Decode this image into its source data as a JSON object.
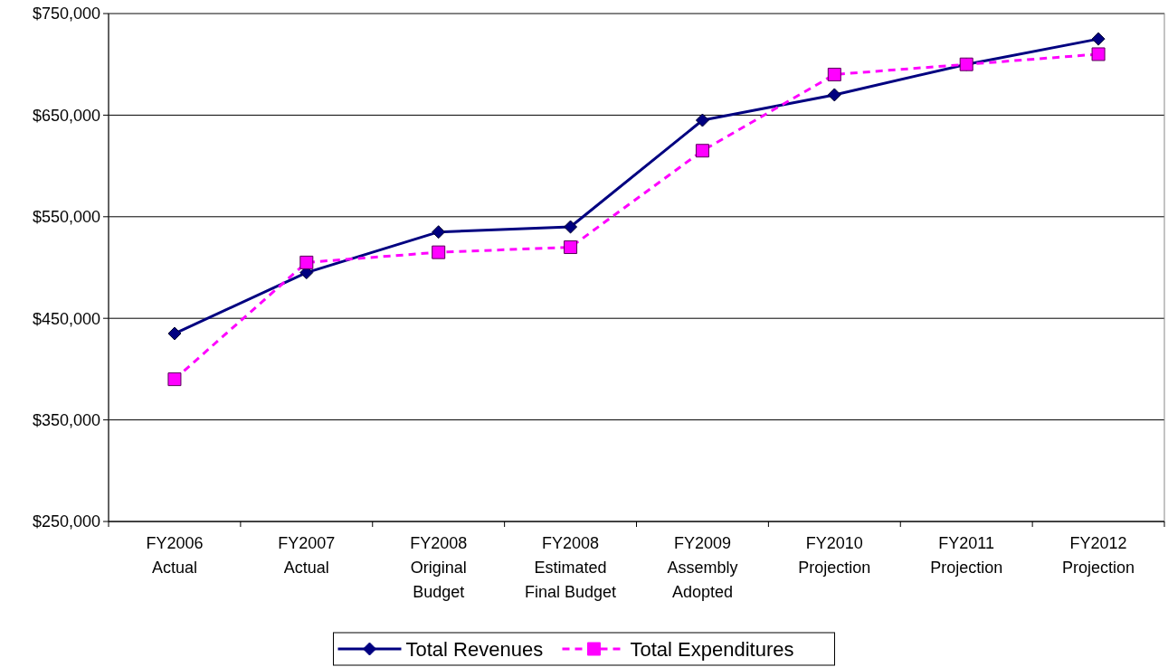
{
  "chart_data": {
    "type": "line",
    "categories": [
      "FY2006\nActual",
      "FY2007\nActual",
      "FY2008\nOriginal\nBudget",
      "FY2008\nEstimated\nFinal Budget",
      "FY2009\nAssembly\nAdopted",
      "FY2010\nProjection",
      "FY2011\nProjection",
      "FY2012\nProjection"
    ],
    "series": [
      {
        "name": "Total Revenues",
        "color": "#000080",
        "marker": "diamond",
        "line_style": "solid",
        "values": [
          435000,
          495000,
          535000,
          540000,
          645000,
          670000,
          700000,
          725000
        ]
      },
      {
        "name": "Total Expenditures",
        "color": "#ff00ff",
        "marker": "square",
        "line_style": "dashed",
        "values": [
          390000,
          505000,
          515000,
          520000,
          615000,
          690000,
          700000,
          710000
        ]
      }
    ],
    "ylim": [
      250000,
      750000
    ],
    "yticks": [
      {
        "value": 250000,
        "label": "$250,000"
      },
      {
        "value": 350000,
        "label": "$350,000"
      },
      {
        "value": 450000,
        "label": "$450,000"
      },
      {
        "value": 550000,
        "label": "$550,000"
      },
      {
        "value": 650000,
        "label": "$650,000"
      },
      {
        "value": 750000,
        "label": "$750,000"
      }
    ],
    "grid": "y",
    "legend": "bottom"
  }
}
